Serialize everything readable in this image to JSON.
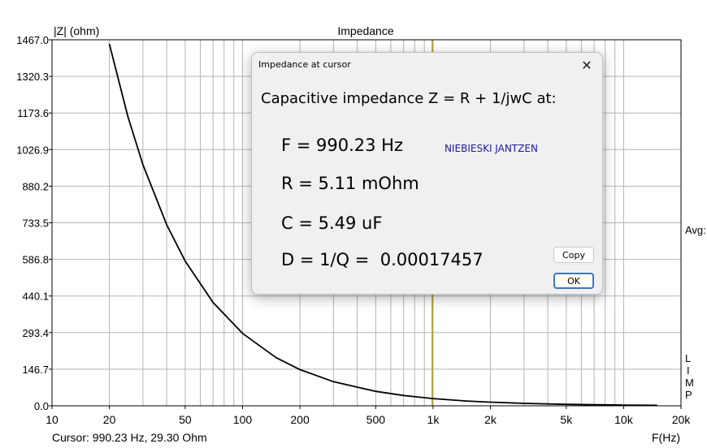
{
  "chart_data": {
    "type": "line",
    "title": "Impedance",
    "ylabel": "|Z| (ohm)",
    "xlabel": "F(Hz)",
    "xscale": "log",
    "xlim": [
      10,
      20000
    ],
    "ylim": [
      0,
      1467.0
    ],
    "x_ticks": [
      10,
      20,
      50,
      100,
      200,
      500,
      1000,
      2000,
      5000,
      10000,
      20000
    ],
    "x_tick_labels": [
      "10",
      "20",
      "50",
      "100",
      "200",
      "500",
      "1k",
      "2k",
      "5k",
      "10k",
      "20k"
    ],
    "y_ticks": [
      0,
      146.7,
      293.4,
      440.1,
      586.8,
      733.5,
      880.2,
      1026.9,
      1173.6,
      1320.3,
      1467.0
    ],
    "y_tick_labels": [
      "0.0",
      "146.7",
      "293.4",
      "440.1",
      "586.8",
      "733.5",
      "880.2",
      "1026.9",
      "1173.6",
      "1320.3",
      "1467.0"
    ],
    "grid": true,
    "cursor_x": 990.23,
    "series": [
      {
        "color": "#000000",
        "x": [
          20,
          25,
          30,
          40,
          50,
          70,
          100,
          150,
          200,
          300,
          500,
          700,
          1000,
          1500,
          2000,
          3000,
          5000,
          7000,
          10000,
          15000
        ],
        "y": [
          1450,
          1160,
          966,
          725,
          580,
          414,
          290,
          193,
          145,
          96.6,
          58.0,
          41.4,
          29.0,
          19.3,
          14.5,
          9.7,
          5.8,
          4.1,
          2.9,
          1.9
        ]
      }
    ],
    "right_labels": {
      "avg": "Avg:",
      "limp": [
        "L",
        "I",
        "M",
        "P"
      ]
    }
  },
  "status": {
    "cursor": "Cursor: 990.23 Hz, 29.30 Ohm"
  },
  "dialog": {
    "title": "Impedance at cursor",
    "heading": "Capacitive impedance Z = R + 1/jwC at:",
    "freq": "F = 990.23 Hz",
    "res": "R = 5.11 mOhm",
    "cap": "C = 5.49 uF",
    "diss": "D = 1/Q =  0.00017457",
    "brand": "NIEBIESKI JANTZEN",
    "copy_label": "Copy",
    "ok_label": "OK",
    "close_glyph": "✕"
  },
  "colors": {
    "grid": "#b4b4b4",
    "cursor": "#a89a1e",
    "curve": "#000000",
    "brand": "#1a1aa6"
  }
}
